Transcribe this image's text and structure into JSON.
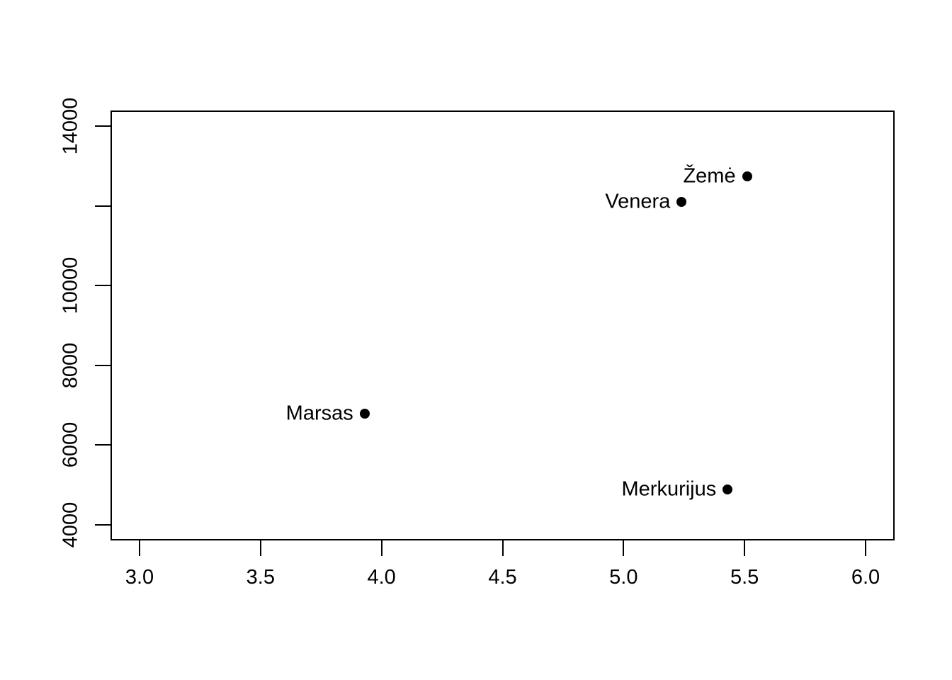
{
  "chart_data": {
    "type": "scatter",
    "title": "",
    "xlabel": "",
    "ylabel": "",
    "xlim": [
      2.88,
      6.12
    ],
    "ylim": [
      3600,
      14400
    ],
    "grid": false,
    "legend": "none",
    "axis_color": "#000000",
    "point_color": "#000000",
    "background_color": "#ffffff",
    "x_ticks": [
      {
        "value": 3.0,
        "label": "3.0"
      },
      {
        "value": 3.5,
        "label": "3.5"
      },
      {
        "value": 4.0,
        "label": "4.0"
      },
      {
        "value": 4.5,
        "label": "4.5"
      },
      {
        "value": 5.0,
        "label": "5.0"
      },
      {
        "value": 5.5,
        "label": "5.5"
      },
      {
        "value": 6.0,
        "label": "6.0"
      }
    ],
    "y_ticks": [
      {
        "value": 4000,
        "label": "4000"
      },
      {
        "value": 6000,
        "label": "6000"
      },
      {
        "value": 8000,
        "label": "8000"
      },
      {
        "value": 10000,
        "label": "10000"
      },
      {
        "value": 12000,
        "label": ""
      },
      {
        "value": 14000,
        "label": "14000"
      }
    ],
    "points": [
      {
        "label": "Žemė",
        "x": 5.51,
        "y": 12742
      },
      {
        "label": "Venera",
        "x": 5.24,
        "y": 12104
      },
      {
        "label": "Marsas",
        "x": 3.93,
        "y": 6779
      },
      {
        "label": "Merkurijus",
        "x": 5.43,
        "y": 4879
      }
    ]
  }
}
